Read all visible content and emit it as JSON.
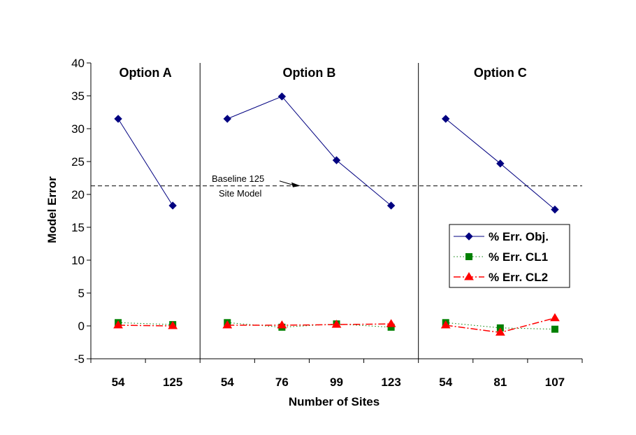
{
  "chart_data": {
    "type": "line",
    "xlabel": "Number of Sites",
    "ylabel": "Model Error",
    "ylim": [
      -5,
      40
    ],
    "yticks": [
      -5,
      0,
      5,
      10,
      15,
      20,
      25,
      30,
      35,
      40
    ],
    "categories": [
      "54",
      "125",
      "54",
      "76",
      "99",
      "123",
      "54",
      "81",
      "107"
    ],
    "groups": [
      {
        "label": "Option A",
        "start": 0,
        "end": 1
      },
      {
        "label": "Option B",
        "start": 2,
        "end": 5
      },
      {
        "label": "Option C",
        "start": 6,
        "end": 8
      }
    ],
    "series": [
      {
        "name": "% Err. Obj.",
        "color": "#000080",
        "marker": "diamond",
        "line": "solid",
        "values": [
          31.5,
          18.3,
          31.5,
          34.9,
          25.2,
          18.3,
          31.5,
          24.7,
          17.7
        ]
      },
      {
        "name": "% Err. CL1",
        "color": "#008000",
        "marker": "square",
        "line": "dotted",
        "values": [
          0.5,
          0.2,
          0.5,
          -0.2,
          0.3,
          -0.2,
          0.5,
          -0.3,
          -0.5
        ]
      },
      {
        "name": "% Err. CL2",
        "color": "#ff0000",
        "marker": "triangle",
        "line": "dashdot",
        "values": [
          0.1,
          0.0,
          0.1,
          0.1,
          0.2,
          0.3,
          0.1,
          -1.0,
          1.2
        ]
      }
    ],
    "reference_line": {
      "value": 21.3,
      "label_line1": "Baseline 125",
      "label_line2": "Site Model"
    },
    "grid": false,
    "legend_position": "right"
  }
}
